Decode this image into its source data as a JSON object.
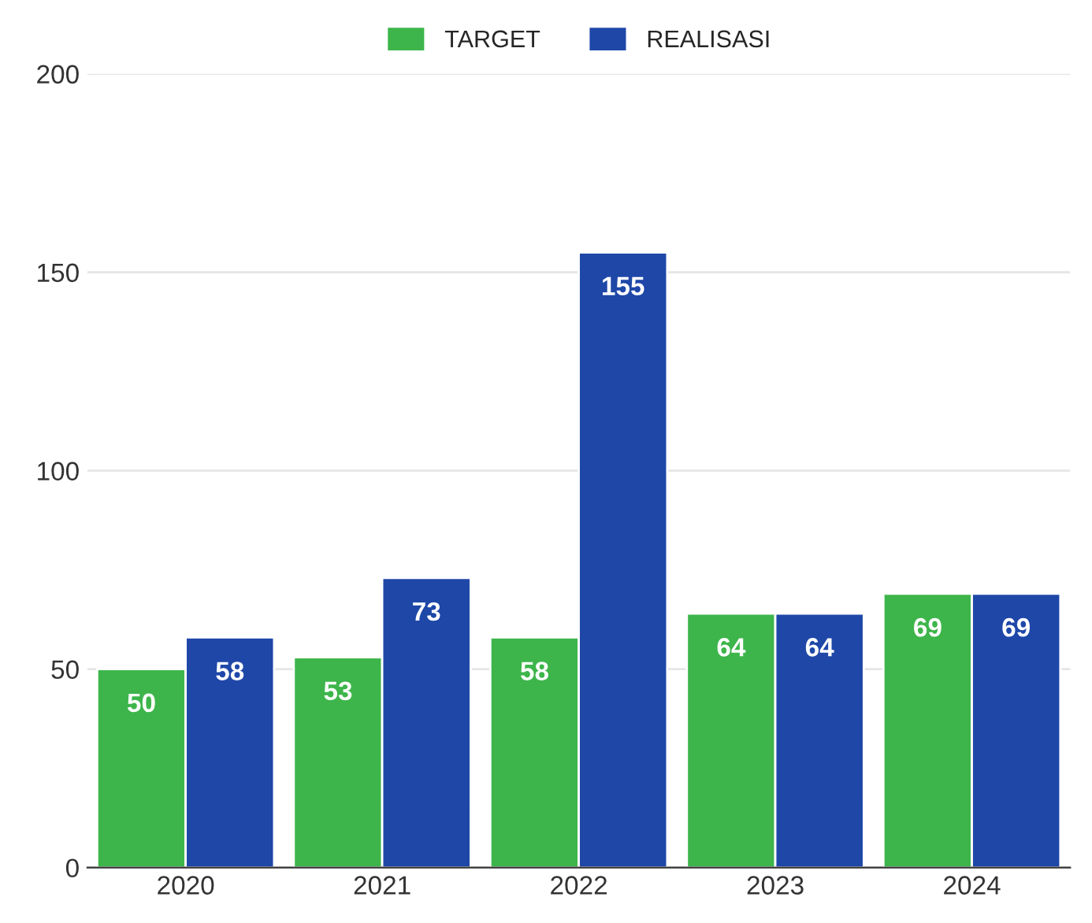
{
  "chart_data": {
    "type": "bar",
    "categories": [
      "2020",
      "2021",
      "2022",
      "2023",
      "2024"
    ],
    "series": [
      {
        "name": "TARGET",
        "color": "#3db54b",
        "values": [
          50,
          53,
          58,
          64,
          69
        ]
      },
      {
        "name": "REALISASI",
        "color": "#1e47a8",
        "values": [
          58,
          73,
          155,
          64,
          69
        ]
      }
    ],
    "ylim": [
      0,
      200
    ],
    "yticks": [
      0,
      50,
      100,
      150,
      200
    ],
    "grid": "y",
    "legend": "top",
    "data_labels": true
  }
}
